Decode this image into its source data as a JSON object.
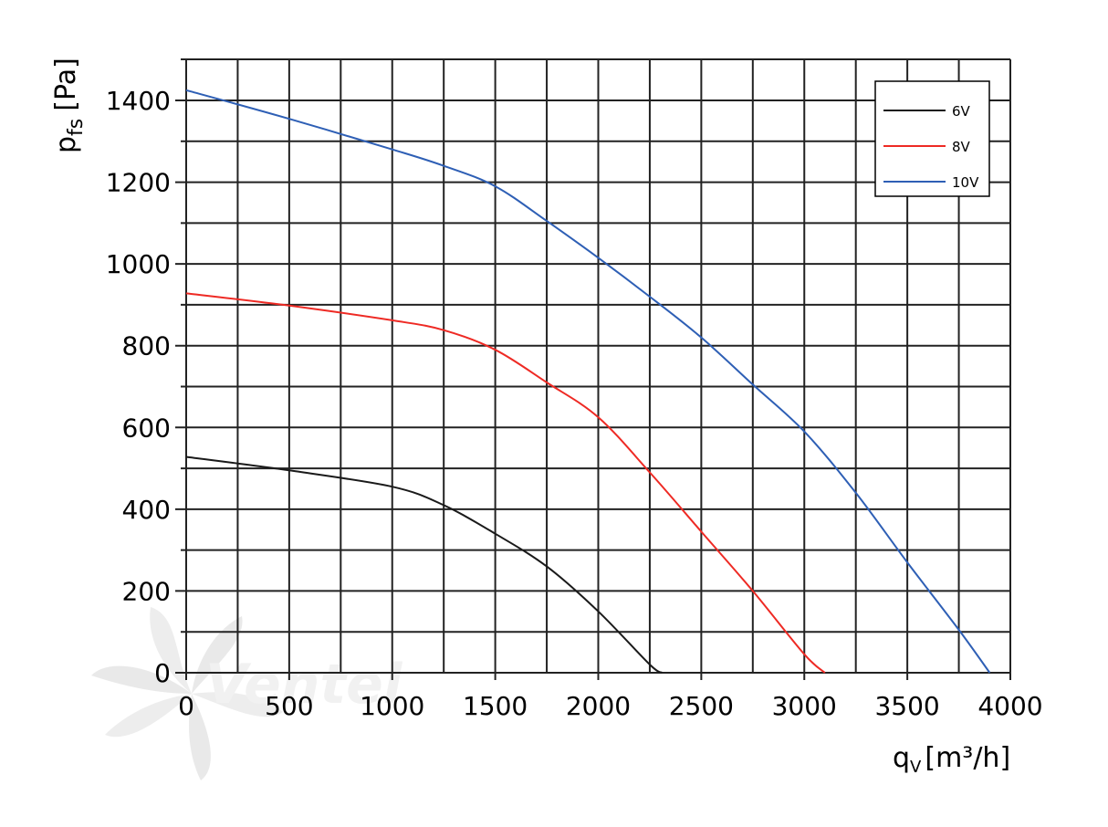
{
  "chart_data": {
    "type": "line",
    "xlabel": {
      "main": "q",
      "sub": "V",
      "unit": "[m³/h]"
    },
    "ylabel": {
      "main": "p",
      "sub": "fs",
      "unit": "[Pa]"
    },
    "xlim": [
      0,
      4000
    ],
    "ylim": [
      0,
      1500
    ],
    "xticks": [
      0,
      500,
      1000,
      1500,
      2000,
      2500,
      3000,
      3500,
      4000
    ],
    "yticks": [
      0,
      200,
      400,
      600,
      800,
      1000,
      1200,
      1400
    ],
    "x_minor_step": 250,
    "y_minor_step": 100,
    "grid": true,
    "legend_position": "top-right",
    "series": [
      {
        "name": "6V",
        "color": "#1a1a1a",
        "points": [
          [
            0,
            528
          ],
          [
            500,
            495
          ],
          [
            1000,
            455
          ],
          [
            1250,
            410
          ],
          [
            1500,
            340
          ],
          [
            1750,
            260
          ],
          [
            2000,
            150
          ],
          [
            2250,
            20
          ],
          [
            2310,
            0
          ]
        ]
      },
      {
        "name": "8V",
        "color": "#ee2a24",
        "points": [
          [
            0,
            928
          ],
          [
            500,
            898
          ],
          [
            1000,
            862
          ],
          [
            1250,
            838
          ],
          [
            1500,
            790
          ],
          [
            1750,
            710
          ],
          [
            2000,
            625
          ],
          [
            2250,
            490
          ],
          [
            2500,
            345
          ],
          [
            2750,
            200
          ],
          [
            3000,
            45
          ],
          [
            3100,
            0
          ]
        ]
      },
      {
        "name": "10V",
        "color": "#2e5fb5",
        "points": [
          [
            0,
            1425
          ],
          [
            500,
            1355
          ],
          [
            1000,
            1280
          ],
          [
            1250,
            1240
          ],
          [
            1500,
            1190
          ],
          [
            1750,
            1105
          ],
          [
            2000,
            1015
          ],
          [
            2250,
            920
          ],
          [
            2500,
            820
          ],
          [
            2750,
            705
          ],
          [
            3000,
            590
          ],
          [
            3250,
            440
          ],
          [
            3500,
            270
          ],
          [
            3750,
            105
          ],
          [
            3900,
            0
          ]
        ]
      }
    ]
  },
  "watermark": {
    "text": "Ventel"
  }
}
